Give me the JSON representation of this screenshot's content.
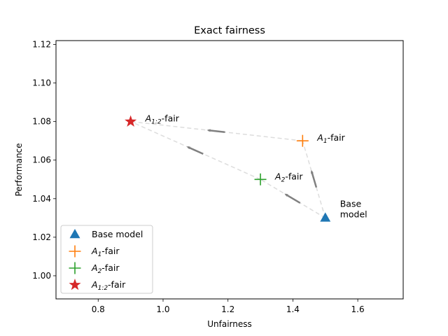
{
  "chart_data": {
    "type": "scatter",
    "title": "Exact fairness",
    "xlabel": "Unfairness",
    "ylabel": "Performance",
    "xlim": [
      0.67,
      1.74
    ],
    "ylim": [
      0.988,
      1.122
    ],
    "xticks": [
      "0.8",
      "1.0",
      "1.2",
      "1.4",
      "1.6"
    ],
    "xtick_values": [
      0.8,
      1.0,
      1.2,
      1.4,
      1.6
    ],
    "yticks": [
      "1.00",
      "1.02",
      "1.04",
      "1.06",
      "1.08",
      "1.10",
      "1.12"
    ],
    "ytick_values": [
      1.0,
      1.02,
      1.04,
      1.06,
      1.08,
      1.1,
      1.12
    ],
    "grid": false,
    "legend_position": "lower-left",
    "series": [
      {
        "name": "Base model",
        "marker": "triangle-up",
        "color": "#1f77b4",
        "x": 1.5,
        "y": 1.03
      },
      {
        "name_main": "A",
        "name_sub": "1",
        "name_suffix": "-fair",
        "marker": "plus",
        "color": "#ff7f0e",
        "x": 1.43,
        "y": 1.07
      },
      {
        "name_main": "A",
        "name_sub": "2",
        "name_suffix": "-fair",
        "marker": "plus",
        "color": "#2ca02c",
        "x": 1.3,
        "y": 1.05
      },
      {
        "name_main": "A",
        "name_sub": "1:2",
        "name_suffix": "-fair",
        "marker": "star",
        "color": "#d62728",
        "x": 0.9,
        "y": 1.08
      }
    ],
    "annotations": [
      {
        "text_lines": [
          "Base",
          "model"
        ],
        "x": 1.5,
        "y": 1.03
      },
      {
        "main": "A",
        "sub": "1",
        "suffix": "-fair",
        "x": 1.43,
        "y": 1.07
      },
      {
        "main": "A",
        "sub": "2",
        "suffix": "-fair",
        "x": 1.3,
        "y": 1.05
      },
      {
        "main": "A",
        "sub": "1:2",
        "suffix": "-fair",
        "x": 0.9,
        "y": 1.08
      }
    ],
    "paths": [
      {
        "from": [
          1.5,
          1.03
        ],
        "to": [
          1.43,
          1.07
        ]
      },
      {
        "from": [
          1.43,
          1.07
        ],
        "to": [
          0.9,
          1.08
        ]
      },
      {
        "from": [
          1.5,
          1.03
        ],
        "to": [
          1.3,
          1.05
        ]
      },
      {
        "from": [
          1.3,
          1.05
        ],
        "to": [
          0.9,
          1.08
        ]
      }
    ],
    "path_color": "#dddddd",
    "arrow_color": "#808080"
  }
}
